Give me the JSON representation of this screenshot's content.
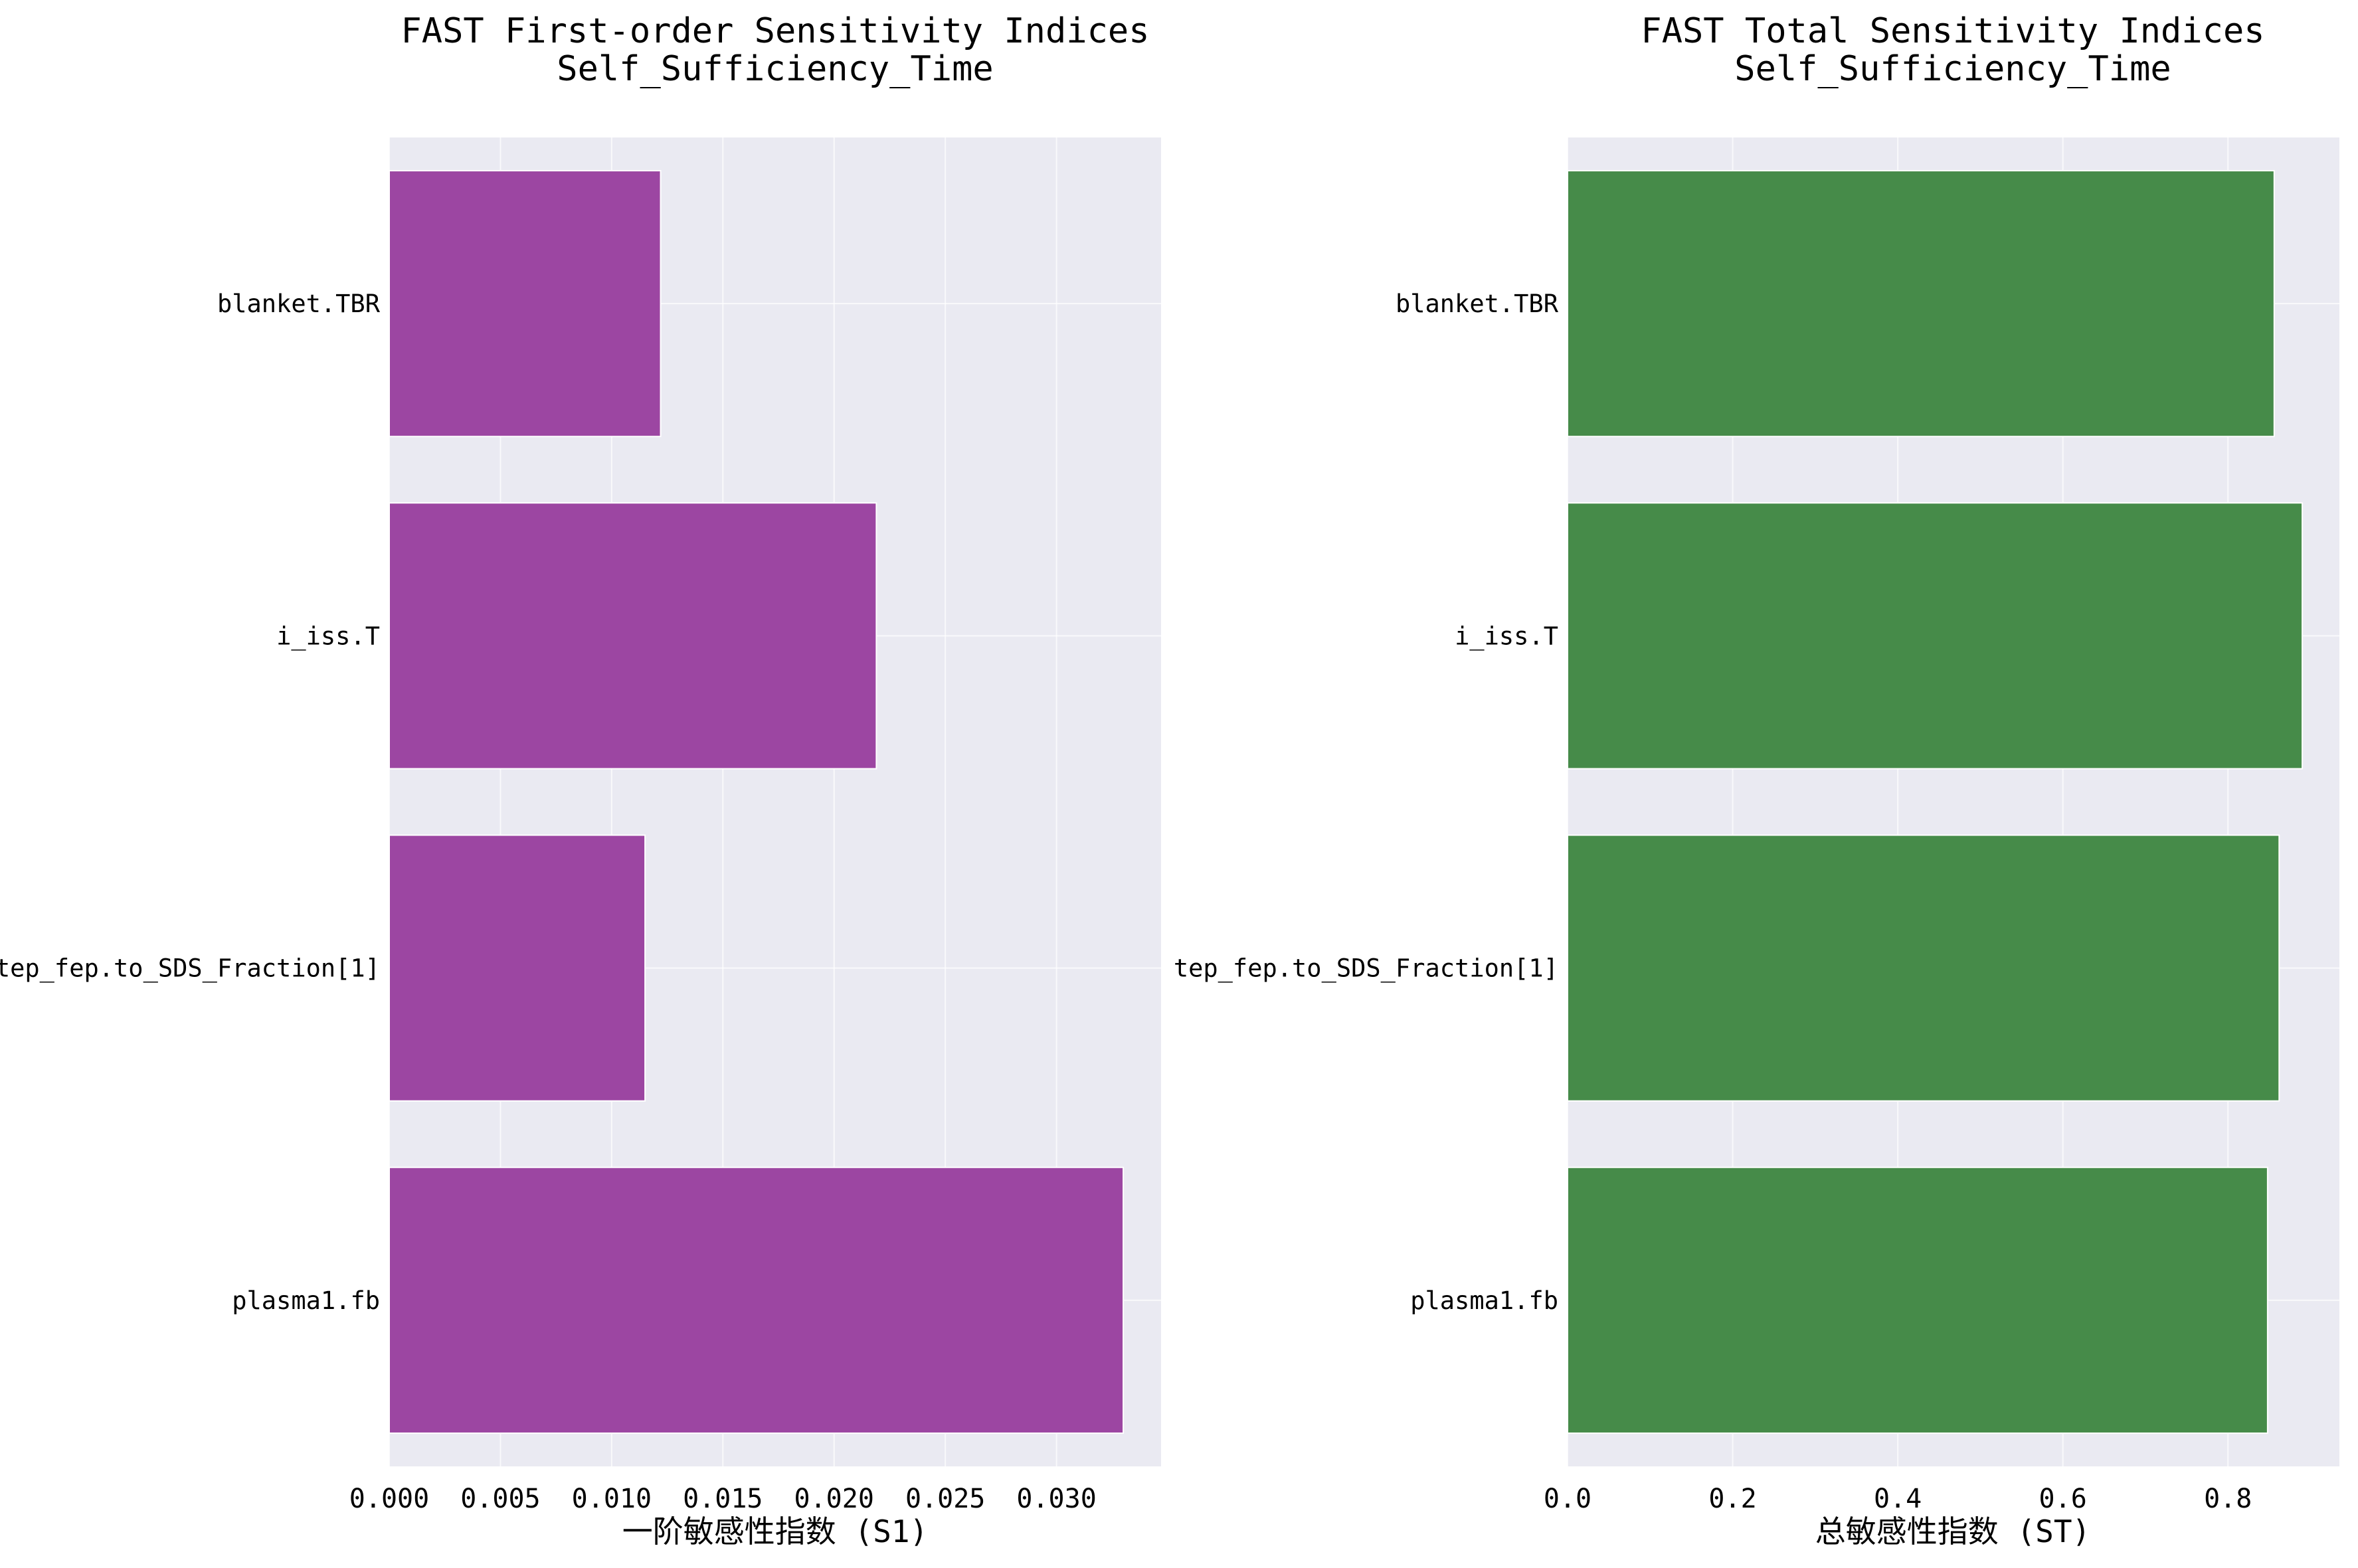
{
  "chart_data": [
    {
      "type": "bar",
      "orientation": "horizontal",
      "title": "FAST First-order Sensitivity Indices",
      "subtitle": "Self_Sufficiency_Time",
      "xlabel": "一阶敏感性指数 (S1)",
      "ylabel": "",
      "categories": [
        "blanket.TBR",
        "i_iss.T",
        "tep_fep.to_SDS_Fraction[1]",
        "plasma1.fb"
      ],
      "values": [
        0.0122,
        0.0219,
        0.0115,
        0.033
      ],
      "xlim": [
        0,
        0.0347
      ],
      "xticks": [
        0.0,
        0.005,
        0.01,
        0.015,
        0.02,
        0.025,
        0.03
      ],
      "xtick_labels": [
        "0.000",
        "0.005",
        "0.010",
        "0.015",
        "0.020",
        "0.025",
        "0.030"
      ],
      "bar_color": "#9c46a2",
      "background": "#eaeaf2",
      "grid": true
    },
    {
      "type": "bar",
      "orientation": "horizontal",
      "title": "FAST Total Sensitivity Indices",
      "subtitle": "Self_Sufficiency_Time",
      "xlabel": "总敏感性指数 (ST)",
      "ylabel": "",
      "categories": [
        "blanket.TBR",
        "i_iss.T",
        "tep_fep.to_SDS_Fraction[1]",
        "plasma1.fb"
      ],
      "values": [
        0.856,
        0.89,
        0.862,
        0.848
      ],
      "xlim": [
        0,
        0.935
      ],
      "xticks": [
        0.0,
        0.2,
        0.4,
        0.6,
        0.8
      ],
      "xtick_labels": [
        "0.0",
        "0.2",
        "0.4",
        "0.6",
        "0.8"
      ],
      "bar_color": "#468b49",
      "background": "#eaeaf2",
      "grid": true
    }
  ]
}
